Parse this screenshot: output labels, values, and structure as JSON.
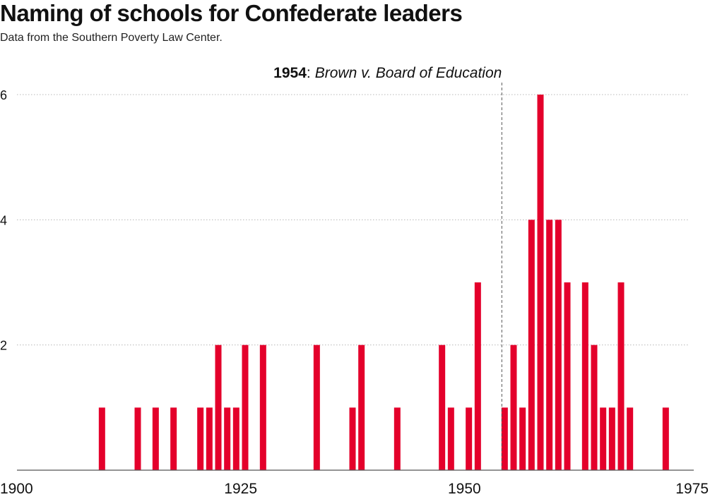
{
  "title": "Naming of schools for Confederate leaders",
  "subtitle": "Data from the Southern Poverty Law Center.",
  "colors": {
    "bar": "#e4002b",
    "grid": "#b8b8b8",
    "axis": "#555555",
    "marker": "#555555"
  },
  "annotation": {
    "year": 1954,
    "year_label": "1954",
    "separator": ":",
    "event": "Brown v. Board of Education"
  },
  "chart_data": {
    "type": "bar",
    "title": "Naming of schools for Confederate leaders",
    "xlabel": "",
    "ylabel": "",
    "xlim": [
      1900,
      1975
    ],
    "ylim": [
      0,
      6
    ],
    "grid": true,
    "x_ticks": [
      1900,
      1925,
      1950,
      1975
    ],
    "y_ticks": [
      2,
      4,
      6
    ],
    "x": [
      1909,
      1913,
      1915,
      1917,
      1920,
      1921,
      1922,
      1923,
      1924,
      1925,
      1927,
      1933,
      1937,
      1938,
      1942,
      1947,
      1948,
      1950,
      1951,
      1954,
      1955,
      1956,
      1957,
      1958,
      1959,
      1960,
      1961,
      1963,
      1964,
      1965,
      1966,
      1967,
      1968,
      1972
    ],
    "values": [
      1,
      1,
      1,
      1,
      1,
      1,
      2,
      1,
      1,
      2,
      2,
      2,
      1,
      2,
      1,
      2,
      1,
      1,
      3,
      1,
      2,
      1,
      4,
      6,
      4,
      4,
      3,
      3,
      2,
      1,
      1,
      3,
      1,
      1
    ]
  }
}
